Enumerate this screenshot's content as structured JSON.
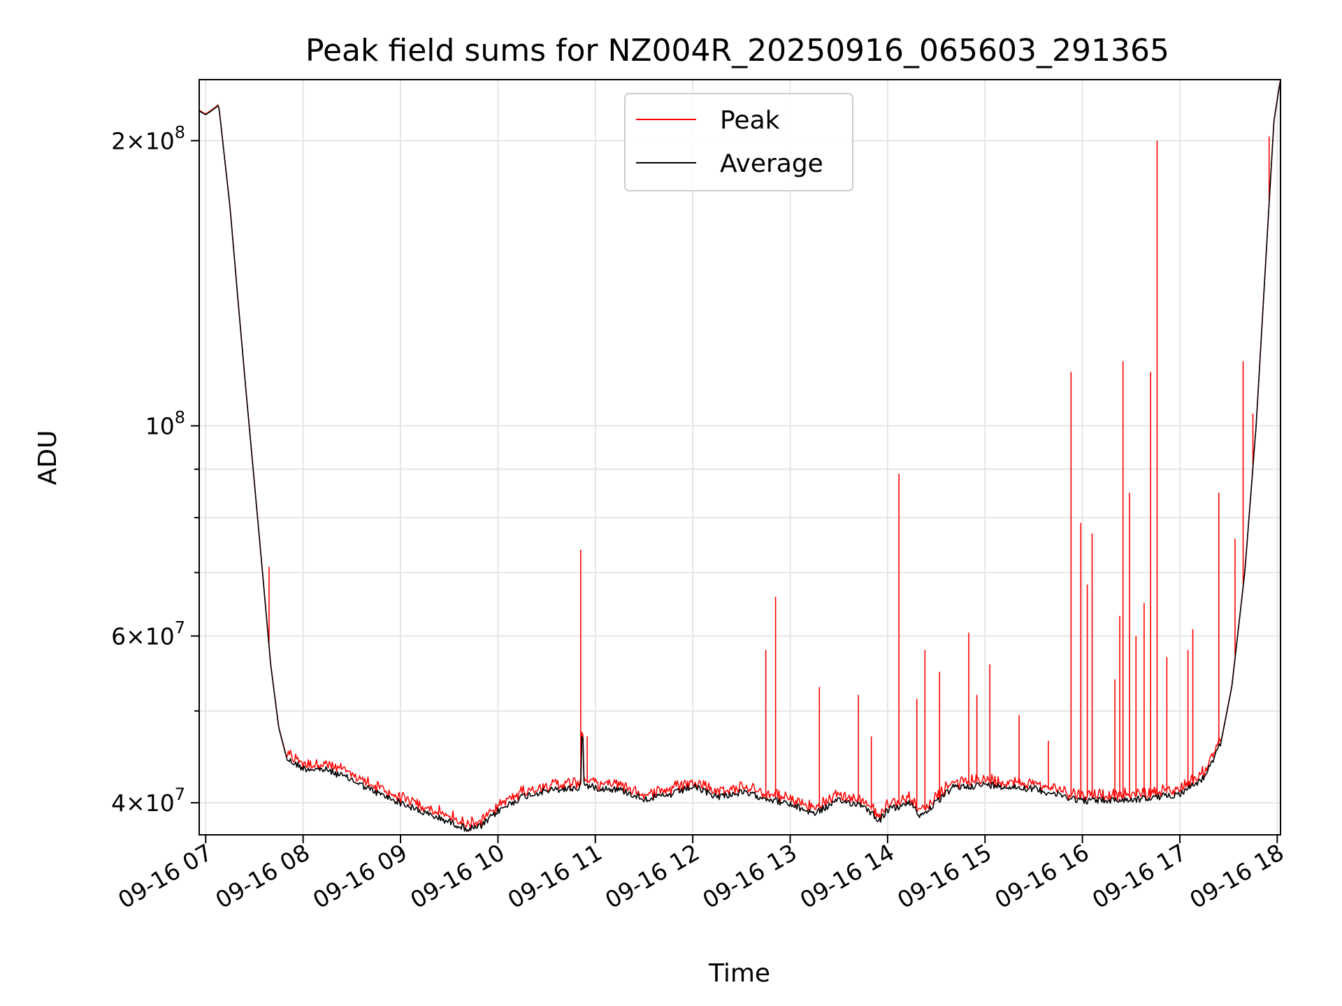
{
  "chart_data": {
    "type": "line",
    "title": "Peak field sums for NZ004R_20250916_065603_291365",
    "xlabel": "Time",
    "ylabel": "ADU",
    "y_scale": "log",
    "ylim": [
      37000000,
      232000000
    ],
    "xlim": [
      "2025-09-16 06:56",
      "2025-09-16 18:02"
    ],
    "grid": true,
    "legend_position": "top-center",
    "x_ticks": [
      {
        "t": "2025-09-16 07:00",
        "label": "09-16 07"
      },
      {
        "t": "2025-09-16 08:00",
        "label": "09-16 08"
      },
      {
        "t": "2025-09-16 09:00",
        "label": "09-16 09"
      },
      {
        "t": "2025-09-16 10:00",
        "label": "09-16 10"
      },
      {
        "t": "2025-09-16 11:00",
        "label": "09-16 11"
      },
      {
        "t": "2025-09-16 12:00",
        "label": "09-16 12"
      },
      {
        "t": "2025-09-16 13:00",
        "label": "09-16 13"
      },
      {
        "t": "2025-09-16 14:00",
        "label": "09-16 14"
      },
      {
        "t": "2025-09-16 15:00",
        "label": "09-16 15"
      },
      {
        "t": "2025-09-16 16:00",
        "label": "09-16 16"
      },
      {
        "t": "2025-09-16 17:00",
        "label": "09-16 17"
      },
      {
        "t": "2025-09-16 18:00",
        "label": "09-16 18"
      }
    ],
    "y_ticks": [
      {
        "v": 40000000,
        "base": "4",
        "exp": "7"
      },
      {
        "v": 60000000,
        "base": "6",
        "exp": "7"
      },
      {
        "v": 100000000,
        "base": "",
        "exp": "8"
      },
      {
        "v": 200000000,
        "base": "2",
        "exp": "8"
      }
    ],
    "y_minor_ticks": [
      50000000,
      70000000,
      80000000,
      90000000
    ],
    "series": [
      {
        "name": "Average",
        "color": "#000000",
        "points": [
          [
            "2025-09-16 06:56",
            215000000
          ],
          [
            "2025-09-16 07:00",
            213000000
          ],
          [
            "2025-09-16 07:05",
            216000000
          ],
          [
            "2025-09-16 07:08",
            218000000
          ],
          [
            "2025-09-16 07:15",
            170000000
          ],
          [
            "2025-09-16 07:20",
            135000000
          ],
          [
            "2025-09-16 07:25",
            108000000
          ],
          [
            "2025-09-16 07:30",
            87000000
          ],
          [
            "2025-09-16 07:35",
            70000000
          ],
          [
            "2025-09-16 07:40",
            56000000
          ],
          [
            "2025-09-16 07:45",
            48000000
          ],
          [
            "2025-09-16 07:50",
            44500000
          ],
          [
            "2025-09-16 08:00",
            43500000
          ],
          [
            "2025-09-16 08:15",
            43300000
          ],
          [
            "2025-09-16 08:30",
            42300000
          ],
          [
            "2025-09-16 08:45",
            41000000
          ],
          [
            "2025-09-16 09:00",
            40000000
          ],
          [
            "2025-09-16 09:15",
            39000000
          ],
          [
            "2025-09-16 09:30",
            38200000
          ],
          [
            "2025-09-16 09:42",
            37500000
          ],
          [
            "2025-09-16 09:50",
            37800000
          ],
          [
            "2025-09-16 10:00",
            39200000
          ],
          [
            "2025-09-16 10:15",
            40600000
          ],
          [
            "2025-09-16 10:30",
            41200000
          ],
          [
            "2025-09-16 10:45",
            41400000
          ],
          [
            "2025-09-16 10:51",
            41500000
          ],
          [
            "2025-09-16 10:52",
            50000000
          ],
          [
            "2025-09-16 10:53",
            41800000
          ],
          [
            "2025-09-16 11:00",
            41500000
          ],
          [
            "2025-09-16 11:15",
            41300000
          ],
          [
            "2025-09-16 11:30",
            40400000
          ],
          [
            "2025-09-16 11:45",
            40700000
          ],
          [
            "2025-09-16 12:00",
            41600000
          ],
          [
            "2025-09-16 12:15",
            40600000
          ],
          [
            "2025-09-16 12:30",
            41000000
          ],
          [
            "2025-09-16 12:45",
            40500000
          ],
          [
            "2025-09-16 13:00",
            39800000
          ],
          [
            "2025-09-16 13:15",
            39000000
          ],
          [
            "2025-09-16 13:30",
            40200000
          ],
          [
            "2025-09-16 13:45",
            39800000
          ],
          [
            "2025-09-16 13:55",
            38300000
          ],
          [
            "2025-09-16 14:00",
            39300000
          ],
          [
            "2025-09-16 14:15",
            40000000
          ],
          [
            "2025-09-16 14:20",
            38700000
          ],
          [
            "2025-09-16 14:30",
            40000000
          ],
          [
            "2025-09-16 14:40",
            41500000
          ],
          [
            "2025-09-16 15:00",
            41800000
          ],
          [
            "2025-09-16 15:30",
            41400000
          ],
          [
            "2025-09-16 16:00",
            40200000
          ],
          [
            "2025-09-16 16:30",
            40300000
          ],
          [
            "2025-09-16 16:45",
            40500000
          ],
          [
            "2025-09-16 17:00",
            40900000
          ],
          [
            "2025-09-16 17:15",
            42500000
          ],
          [
            "2025-09-16 17:25",
            46000000
          ],
          [
            "2025-09-16 17:32",
            53000000
          ],
          [
            "2025-09-16 17:40",
            70000000
          ],
          [
            "2025-09-16 17:47",
            100000000
          ],
          [
            "2025-09-16 17:53",
            150000000
          ],
          [
            "2025-09-16 17:58",
            210000000
          ],
          [
            "2025-09-16 18:02",
            232000000
          ]
        ]
      },
      {
        "name": "Peak",
        "color": "#ff0000",
        "spikes": [
          [
            "2025-09-16 07:39",
            71000000
          ],
          [
            "2025-09-16 10:51",
            74000000
          ],
          [
            "2025-09-16 10:55",
            47000000
          ],
          [
            "2025-09-16 12:45",
            58000000
          ],
          [
            "2025-09-16 12:51",
            66000000
          ],
          [
            "2025-09-16 13:18",
            53000000
          ],
          [
            "2025-09-16 13:42",
            52000000
          ],
          [
            "2025-09-16 13:50",
            47000000
          ],
          [
            "2025-09-16 14:07",
            89000000
          ],
          [
            "2025-09-16 14:18",
            51500000
          ],
          [
            "2025-09-16 14:23",
            58000000
          ],
          [
            "2025-09-16 14:32",
            55000000
          ],
          [
            "2025-09-16 14:50",
            60500000
          ],
          [
            "2025-09-16 14:55",
            52000000
          ],
          [
            "2025-09-16 15:03",
            56000000
          ],
          [
            "2025-09-16 15:21",
            49500000
          ],
          [
            "2025-09-16 15:39",
            46500000
          ],
          [
            "2025-09-16 15:53",
            114000000
          ],
          [
            "2025-09-16 15:59",
            79000000
          ],
          [
            "2025-09-16 16:03",
            68000000
          ],
          [
            "2025-09-16 16:06",
            77000000
          ],
          [
            "2025-09-16 16:20",
            54000000
          ],
          [
            "2025-09-16 16:23",
            63000000
          ],
          [
            "2025-09-16 16:25",
            117000000
          ],
          [
            "2025-09-16 16:29",
            85000000
          ],
          [
            "2025-09-16 16:33",
            60000000
          ],
          [
            "2025-09-16 16:38",
            65000000
          ],
          [
            "2025-09-16 16:42",
            114000000
          ],
          [
            "2025-09-16 16:46",
            200000000
          ],
          [
            "2025-09-16 16:52",
            57000000
          ],
          [
            "2025-09-16 17:05",
            58000000
          ],
          [
            "2025-09-16 17:08",
            61000000
          ],
          [
            "2025-09-16 17:24",
            85000000
          ],
          [
            "2025-09-16 17:34",
            76000000
          ],
          [
            "2025-09-16 17:39",
            117000000
          ],
          [
            "2025-09-16 17:45",
            103000000
          ],
          [
            "2025-09-16 17:55",
            202000000
          ]
        ]
      }
    ]
  }
}
